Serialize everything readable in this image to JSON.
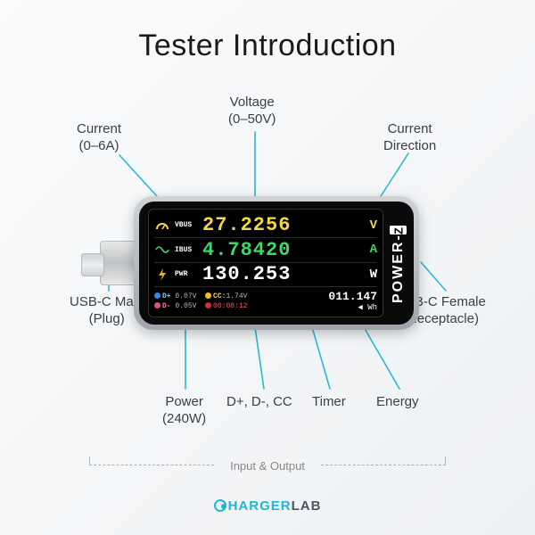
{
  "title": "Tester Introduction",
  "callouts": {
    "current": {
      "label": "Current",
      "sub": "(0–6A)"
    },
    "voltage": {
      "label": "Voltage",
      "sub": "(0–50V)"
    },
    "direction": {
      "label": "Current",
      "sub": "Direction"
    },
    "usbMale": {
      "label": "USB-C Male",
      "sub": "(Plug)"
    },
    "usbFemale": {
      "label": "USB-C Female",
      "sub": "(Receptacle)"
    },
    "power": {
      "label": "Power",
      "sub": "(240W)"
    },
    "dpdm": {
      "label": "D+, D-, CC",
      "sub": ""
    },
    "timer": {
      "label": "Timer",
      "sub": ""
    },
    "energy": {
      "label": "Energy",
      "sub": ""
    }
  },
  "device": {
    "brand": "POWER-",
    "brandSuffix": "Z",
    "readings": {
      "vbus": {
        "label": "VBUS",
        "value": "27.2256",
        "unit": "V",
        "color": "#f5d742",
        "icon": "gauge"
      },
      "ibus": {
        "label": "IBUS",
        "value": "4.78420",
        "unit": "A",
        "color": "#3dd968",
        "icon": "wave"
      },
      "pwr": {
        "label": "PWR",
        "value": "130.253",
        "unit": "W",
        "color": "#ffffff",
        "icon": "bolt"
      }
    },
    "bottom": {
      "dp": {
        "dot": "#2B8CEA",
        "label": "D+",
        "value": "0.07V"
      },
      "dm": {
        "dot": "#E84A8A",
        "label": "D-",
        "value": "0.05V"
      },
      "cc": {
        "dot": "#f0c020",
        "label": "CC:",
        "value": "1.74V"
      },
      "timer": {
        "dot": "#d03030",
        "value": "00:08:12"
      },
      "energy": {
        "value": "011.147",
        "unit": "Wh"
      }
    }
  },
  "io_label": "Input & Output",
  "logo": {
    "part1": "HARGER",
    "part2": "LAB"
  },
  "style": {
    "leadColor": "#2bb8d6",
    "bg_from": "#fafbfc",
    "bg_to": "#eef1f4",
    "titleColor": "#1a1a1a",
    "titleSize": 34,
    "calloutColor": "#3a3f44",
    "calloutSize": 15,
    "screenBg": "#000000",
    "bezelBg": "#0a0a0a",
    "valueSize": 22,
    "unitSize": 14,
    "labelSize": 8
  },
  "leads": [
    {
      "from": [
        134,
        174
      ],
      "to": [
        196,
        242
      ]
    },
    {
      "from": [
        286,
        148
      ],
      "to": [
        286,
        240
      ]
    },
    {
      "from": [
        458,
        172
      ],
      "to": [
        418,
        234
      ]
    },
    {
      "from": [
        122,
        326
      ],
      "to": [
        122,
        290
      ]
    },
    {
      "from": [
        500,
        326
      ],
      "to": [
        472,
        294
      ]
    },
    {
      "from": [
        208,
        436
      ],
      "to": [
        208,
        360
      ]
    },
    {
      "from": [
        296,
        436
      ],
      "to": [
        285,
        360
      ]
    },
    {
      "from": [
        370,
        436
      ],
      "to": [
        348,
        360
      ]
    },
    {
      "from": [
        448,
        436
      ],
      "to": [
        404,
        360
      ]
    }
  ]
}
